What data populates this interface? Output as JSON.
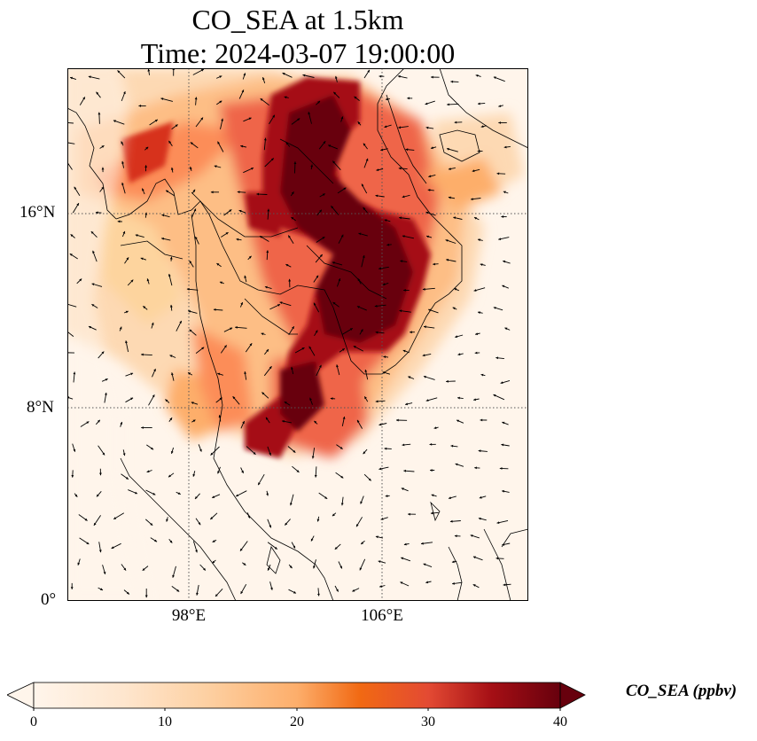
{
  "title_line1": "CO_SEA at 1.5km",
  "title_line2": "Time: 2024-03-07 19:00:00",
  "lat_labels": [
    "16°N",
    "8°N",
    "0°"
  ],
  "lon_labels": [
    "98°E",
    "106°E"
  ],
  "colorbar": {
    "label": "CO_SEA (ppbv)",
    "ticks": [
      "0",
      "10",
      "20",
      "30",
      "40"
    ],
    "colors": [
      "#fff5eb",
      "#fdd9b3",
      "#fdae6b",
      "#f16913",
      "#d94801",
      "#a50f15",
      "#67000d"
    ],
    "extend": "both"
  },
  "map": {
    "projection": "PlateCarree",
    "lon_range": [
      93,
      112
    ],
    "lat_range": [
      0,
      22
    ],
    "gridlines": "dotted",
    "colormap": "OrRd",
    "wind_vectors": true
  }
}
